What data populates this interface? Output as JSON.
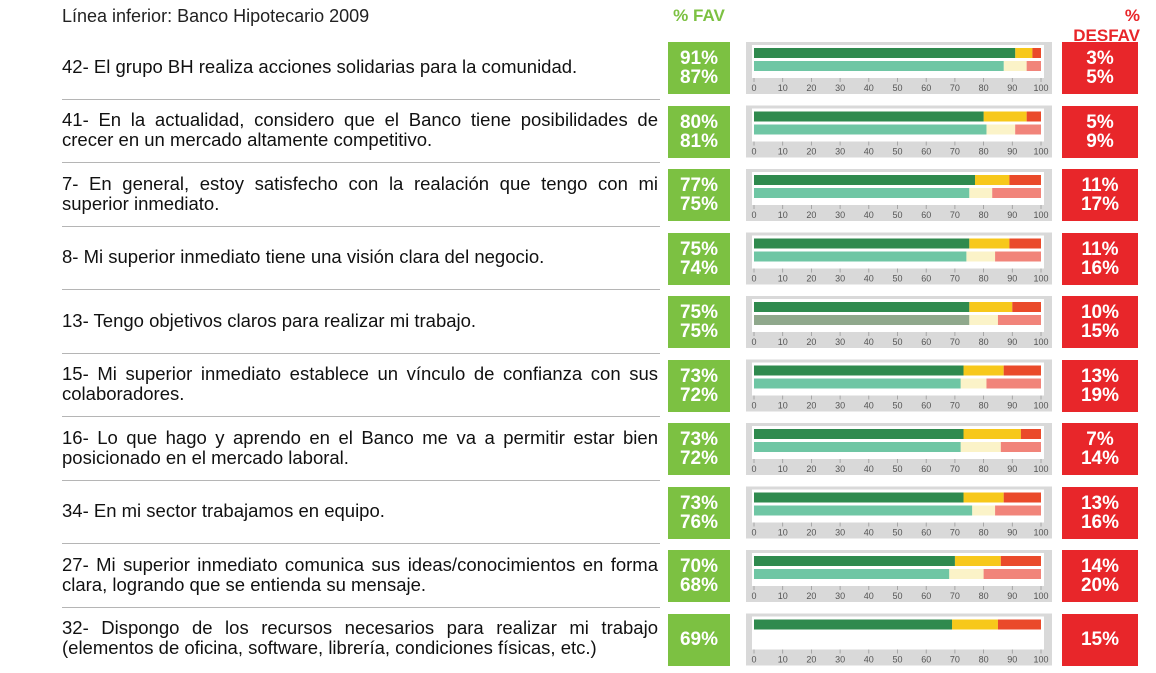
{
  "chart_data": {
    "type": "survey-bars",
    "subtitle": "Línea inferior: Banco Hipotecario 2009",
    "fav_header": "% FAV",
    "desfav_header": "% DESFAV",
    "xlim": [
      0,
      100
    ],
    "xticks": [
      0,
      10,
      20,
      30,
      40,
      50,
      60,
      70,
      80,
      90,
      100
    ],
    "colors": {
      "current": [
        "#2f8a4e",
        "#f7c81b",
        "#ea4a2a"
      ],
      "previous": [
        "#6fc6a4",
        "#fbf3c8",
        "#f1847a"
      ]
    },
    "rows": [
      {
        "label": "42- El grupo BH realiza acciones solidarias para la comunidad.",
        "fav": {
          "values": [
            91,
            87
          ],
          "value_labels": [
            "91%",
            "87%"
          ]
        },
        "desfav": {
          "values": [
            3,
            5
          ],
          "value_labels": [
            "3%",
            "5%"
          ]
        }
      },
      {
        "label": "41- En la actualidad, considero que el Banco tiene posibilidades de crecer en un mercado altamente competitivo.",
        "fav": {
          "values": [
            80,
            81
          ],
          "value_labels": [
            "80%",
            "81%"
          ]
        },
        "desfav": {
          "values": [
            5,
            9
          ],
          "value_labels": [
            "5%",
            "9%"
          ]
        }
      },
      {
        "label": "7- En general, estoy satisfecho con la realación que tengo con mi superior inmediato.",
        "fav": {
          "values": [
            77,
            75
          ],
          "value_labels": [
            "77%",
            "75%"
          ]
        },
        "desfav": {
          "values": [
            11,
            17
          ],
          "value_labels": [
            "11%",
            "17%"
          ]
        }
      },
      {
        "label": "8- Mi superior inmediato tiene una visión clara del negocio.",
        "fav": {
          "values": [
            75,
            74
          ],
          "value_labels": [
            "75%",
            "74%"
          ]
        },
        "desfav": {
          "values": [
            11,
            16
          ],
          "value_labels": [
            "11%",
            "16%"
          ]
        }
      },
      {
        "label": "13- Tengo objetivos claros para realizar mi trabajo.",
        "fav": {
          "values": [
            75,
            75
          ],
          "value_labels": [
            "75%",
            "75%"
          ]
        },
        "desfav": {
          "values": [
            10,
            15
          ],
          "value_labels": [
            "10%",
            "15%"
          ]
        },
        "previous_fav_color": "#8fa88c"
      },
      {
        "label": "15- Mi superior inmediato establece un vínculo de confianza con sus colaboradores.",
        "fav": {
          "values": [
            73,
            72
          ],
          "value_labels": [
            "73%",
            "72%"
          ]
        },
        "desfav": {
          "values": [
            13,
            19
          ],
          "value_labels": [
            "13%",
            "19%"
          ]
        }
      },
      {
        "label": "16- Lo que hago y aprendo en el Banco me va a permitir estar bien posicionado en el mercado laboral.",
        "fav": {
          "values": [
            73,
            72
          ],
          "value_labels": [
            "73%",
            "72%"
          ]
        },
        "desfav": {
          "values": [
            7,
            14
          ],
          "value_labels": [
            "7%",
            "14%"
          ]
        }
      },
      {
        "label": "34- En mi sector trabajamos en equipo.",
        "fav": {
          "values": [
            73,
            76
          ],
          "value_labels": [
            "73%",
            "76%"
          ]
        },
        "desfav": {
          "values": [
            13,
            16
          ],
          "value_labels": [
            "13%",
            "16%"
          ]
        }
      },
      {
        "label": "27- Mi superior inmediato comunica sus ideas/conocimientos en forma clara, logrando que se entienda su mensaje.",
        "fav": {
          "values": [
            70,
            68
          ],
          "value_labels": [
            "70%",
            "68%"
          ]
        },
        "desfav": {
          "values": [
            14,
            20
          ],
          "value_labels": [
            "14%",
            "20%"
          ]
        }
      },
      {
        "label": "32- Dispongo de los recursos necesarios para realizar mi trabajo (elementos de oficina, software, librería, condiciones físicas, etc.)",
        "fav": {
          "values": [
            69
          ],
          "value_labels": [
            "69%"
          ]
        },
        "desfav": {
          "values": [
            15
          ],
          "value_labels": [
            "15%"
          ]
        }
      }
    ]
  }
}
